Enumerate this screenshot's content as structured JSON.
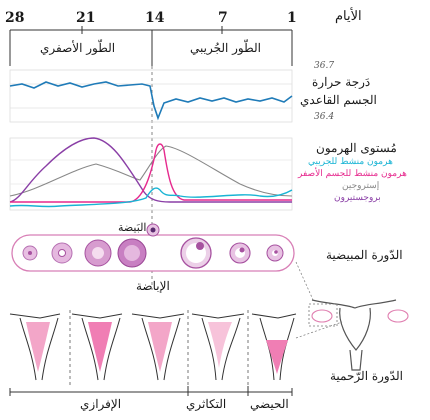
{
  "days": {
    "title": "الأيام",
    "ticks": [
      "28",
      "21",
      "14",
      "7",
      "1"
    ]
  },
  "phases_top": {
    "follicular": "الطّور الجُريبي",
    "luteal": "الطّور الأصفري"
  },
  "temperature": {
    "title_line1": "دَرجة حرارة",
    "title_line2": "الجسم القاعدي",
    "high": "36.7",
    "low": "36.4",
    "color": "#1f7bb8"
  },
  "hormones": {
    "title": "مُستوى الهرمون",
    "legend": [
      {
        "label": "هرمون منشط للجريبي",
        "color": "#19b4d4"
      },
      {
        "label": "هرمون منشط للجسم الأصفر",
        "color": "#e62a8e"
      },
      {
        "label": "إستروجين",
        "color": "#888888"
      },
      {
        "label": "بروجستيرون",
        "color": "#8a3fa6"
      }
    ]
  },
  "ovarian": {
    "title": "الدّورة المبيضية",
    "egg_label": "البَيضة",
    "ovulation_label": "الإباضة",
    "follicle_color": "#c87fc2"
  },
  "uterine": {
    "title": "الدّورة الرّحمية",
    "phases": [
      "الحيضي",
      "التكاثري",
      "الإفرازي"
    ]
  }
}
